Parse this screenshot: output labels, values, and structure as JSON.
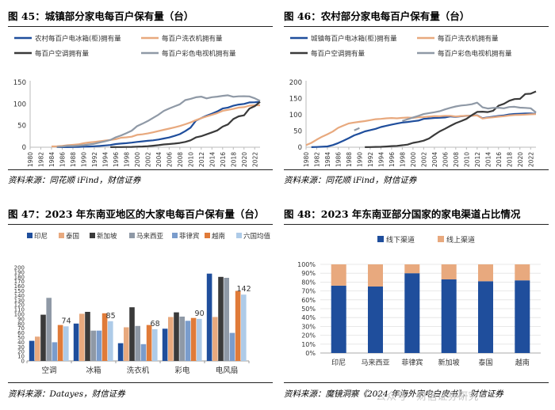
{
  "panels": [
    {
      "title": "图 45：城镇部分家电每百户保有量（台）",
      "source": "资料来源：同花顺 iFind，财信证券"
    },
    {
      "title": "图 46：农村部分家电每百户保有量（台）",
      "source": "资料来源：同花顺 iFind，财信证券"
    },
    {
      "title": "图 47：2023 年东南亚地区的大家电每百户保有量（台）",
      "source": "资料来源：Datayes，财信证券"
    },
    {
      "title": "图 48：2023 年东南亚部分国家的家电渠道占比情况",
      "source": "资料来源：魔镜洞察《2024 年海外家电白皮书》，财信证券"
    }
  ],
  "watermark": "公众号 · 财信证券研究",
  "chart_data": [
    {
      "type": "line",
      "title": "城镇部分家电每百户保有量（台）",
      "x": [
        1980,
        1981,
        1982,
        1983,
        1984,
        1985,
        1986,
        1987,
        1988,
        1989,
        1990,
        1991,
        1992,
        1993,
        1994,
        1995,
        1996,
        1997,
        1998,
        1999,
        2000,
        2001,
        2002,
        2003,
        2004,
        2005,
        2006,
        2007,
        2008,
        2009,
        2010,
        2011,
        2012,
        2013,
        2014,
        2015,
        2016,
        2017,
        2018,
        2019,
        2020,
        2021,
        2022,
        2023
      ],
      "x_ticks": [
        1980,
        1982,
        1984,
        1986,
        1988,
        1990,
        1992,
        1994,
        1996,
        1998,
        2000,
        2002,
        2004,
        2006,
        2008,
        2010,
        2012,
        2014,
        2016,
        2018,
        2020,
        2022
      ],
      "ylim": [
        0,
        150
      ],
      "y_ticks": [
        0,
        50,
        100,
        150
      ],
      "legend_cols": 2,
      "series": [
        {
          "name": "农村每百户电冰箱(柜)拥有量",
          "color": "#1f4e9c",
          "values": [
            null,
            null,
            null,
            null,
            null,
            0.1,
            0.1,
            0.2,
            0.3,
            0.5,
            1.2,
            1.6,
            2.2,
            2.9,
            4.0,
            5.2,
            7.3,
            8.5,
            9.3,
            10.6,
            12.3,
            13.6,
            14.8,
            15.9,
            17.8,
            20.1,
            22.5,
            26.1,
            30.2,
            37.1,
            45.2,
            61.5,
            67.3,
            72.9,
            77.6,
            82.6,
            89.5,
            91.7,
            95.9,
            98.6,
            100.1,
            103.5,
            103.9,
            105
          ]
        },
        {
          "name": "每百户洗衣机拥有量",
          "color": "#e8a97e",
          "values": [
            null,
            null,
            null,
            null,
            1.9,
            2.0,
            3.0,
            4.5,
            5.5,
            6.5,
            9.1,
            11.0,
            12.2,
            13.8,
            15.3,
            16.9,
            18.5,
            21.9,
            22.8,
            24.3,
            28.6,
            29.9,
            31.8,
            34.3,
            37.3,
            40.2,
            43.0,
            45.9,
            49.1,
            53.1,
            57.3,
            62.6,
            67.2,
            71.2,
            74.8,
            78.8,
            84.0,
            86.3,
            88.5,
            91.6,
            92.6,
            96.1,
            96.9,
            97
          ]
        },
        {
          "name": "每百户空调拥有量",
          "color": "#3a3a3a",
          "values": [
            null,
            null,
            null,
            null,
            null,
            null,
            null,
            null,
            null,
            null,
            null,
            null,
            null,
            null,
            null,
            0.2,
            0.3,
            0.4,
            0.6,
            0.7,
            1.3,
            1.7,
            2.3,
            3.4,
            4.7,
            6.4,
            7.3,
            8.5,
            9.8,
            12.2,
            16.0,
            22.6,
            25.4,
            29.8,
            34.2,
            38.8,
            47.6,
            52.6,
            65.2,
            71.3,
            73.8,
            89.0,
            95.0,
            105
          ]
        },
        {
          "name": "每百户彩色电视机拥有量",
          "color": "#8f99a6",
          "values": [
            null,
            null,
            null,
            null,
            null,
            0.8,
            1.5,
            3.0,
            2.8,
            3.6,
            4.7,
            6.4,
            8.1,
            10.9,
            13.5,
            16.9,
            22.9,
            27.3,
            32.6,
            38.2,
            48.7,
            54.4,
            60.5,
            67.8,
            75.1,
            84.0,
            89.4,
            94.4,
            99.2,
            108.9,
            111.8,
            115.5,
            116.9,
            112.9,
            115.6,
            116.9,
            118.8,
            120.0,
            116.6,
            117.6,
            117.8,
            117.5,
            113.0,
            107
          ]
        }
      ]
    },
    {
      "type": "line",
      "title": "农村部分家电每百户保有量（台）",
      "x": [
        1980,
        1981,
        1982,
        1983,
        1984,
        1985,
        1986,
        1987,
        1988,
        1989,
        1990,
        1991,
        1992,
        1993,
        1994,
        1995,
        1996,
        1997,
        1998,
        1999,
        2000,
        2001,
        2002,
        2003,
        2004,
        2005,
        2006,
        2007,
        2008,
        2009,
        2010,
        2011,
        2012,
        2013,
        2014,
        2015,
        2016,
        2017,
        2018,
        2019,
        2020,
        2021,
        2022,
        2023
      ],
      "x_ticks": [
        1980,
        1982,
        1984,
        1986,
        1988,
        1990,
        1992,
        1994,
        1996,
        1998,
        2000,
        2002,
        2004,
        2006,
        2008,
        2010,
        2012,
        2014,
        2016,
        2018,
        2020,
        2022
      ],
      "ylim": [
        0,
        200
      ],
      "y_ticks": [
        0,
        50,
        100,
        150,
        200
      ],
      "legend_cols": 2,
      "series": [
        {
          "name": "城镇每百户电冰箱(柜)拥有量",
          "color": "#1f4e9c",
          "values": [
            null,
            0.2,
            0.7,
            1.5,
            2.5,
            6.6,
            12.7,
            19.9,
            28.1,
            36.5,
            42.3,
            48.7,
            52.6,
            56.7,
            62.1,
            66.2,
            69.7,
            72.9,
            76.1,
            77.7,
            80.1,
            81.9,
            87.4,
            88.7,
            90.2,
            90.7,
            91.8,
            95.0,
            93.6,
            95.4,
            96.6,
            97.2,
            98.5,
            89.2,
            91.7,
            94.0,
            96.4,
            98.0,
            100.9,
            102.5,
            103.1,
            104.2,
            103.8,
            103
          ]
        },
        {
          "name": "每百户洗衣机拥有量",
          "color": "#e8a97e",
          "values": [
            6.3,
            13.4,
            23.3,
            32.5,
            40.1,
            48.3,
            59.7,
            66.8,
            73.4,
            76.2,
            78.4,
            80.6,
            83.4,
            86.4,
            87.3,
            88.97,
            90.06,
            89.1,
            90.6,
            91.4,
            90.5,
            92.2,
            92.9,
            94.4,
            95.9,
            95.5,
            96.8,
            96.8,
            94.7,
            96.0,
            96.9,
            97.1,
            98.0,
            88.4,
            90.7,
            92.3,
            94.2,
            95.7,
            97.7,
            99.2,
            99.7,
            100.5,
            101.5,
            102
          ]
        },
        {
          "name": "每百户空调拥有量",
          "color": "#3a3a3a",
          "values": [
            null,
            null,
            null,
            null,
            null,
            null,
            null,
            null,
            null,
            null,
            null,
            0.3,
            0.5,
            0.9,
            1.2,
            2.2,
            3.3,
            4.2,
            6.0,
            8.1,
            13.5,
            16.3,
            20.2,
            26.9,
            38.3,
            48.7,
            56.8,
            65.8,
            74.2,
            80.5,
            87.3,
            98.9,
            108.8,
            109.6,
            108.2,
            112.5,
            128.0,
            133.7,
            143.2,
            148.3,
            149.1,
            164.0,
            165.0,
            172
          ]
        },
        {
          "name": "每百户彩色电视机拥有量",
          "color": "#8f99a6",
          "values": [
            null,
            null,
            null,
            null,
            null,
            null,
            null,
            null,
            null,
            52.0,
            59.0,
            null,
            null,
            null,
            null,
            null,
            null,
            null,
            81.0,
            86.0,
            91.7,
            96.7,
            102.1,
            105.0,
            107.9,
            111.0,
            116.7,
            121.4,
            125.7,
            128.6,
            130.0,
            132.5,
            137.4,
            123.0,
            119.3,
            121.3,
            121.8,
            120.0,
            124.0,
            124.6,
            122.0,
            121.3,
            120.0,
            107
          ]
        }
      ]
    },
    {
      "type": "bar",
      "title": "2023 年东南亚地区的大家电每百户保有量（台）",
      "categories": [
        "空调",
        "冰箱",
        "洗衣机",
        "彩电",
        "电风扇"
      ],
      "ylim": [
        0,
        200
      ],
      "y_ticks": [
        0,
        10,
        20,
        30,
        40,
        50,
        60,
        70,
        80,
        90,
        100,
        110,
        120,
        130,
        140,
        150,
        160,
        170,
        180,
        190,
        200
      ],
      "y_tick_labels_shown": [
        0,
        20,
        40,
        60,
        80,
        100,
        120,
        140,
        160,
        180,
        200
      ],
      "series": [
        {
          "name": "印尼",
          "color": "#1f4e9c",
          "values": [
            43,
            80,
            38,
            69,
            187
          ]
        },
        {
          "name": "泰国",
          "color": "#e8a97e",
          "values": [
            52,
            101,
            72,
            94,
            94
          ]
        },
        {
          "name": "新加坡",
          "color": "#3a3a3a",
          "values": [
            99,
            105,
            115,
            104,
            180
          ]
        },
        {
          "name": "马来西亚",
          "color": "#8f99a6",
          "values": [
            135,
            65,
            75,
            95,
            178
          ]
        },
        {
          "name": "菲律宾",
          "color": "#7a9ccc",
          "values": [
            40,
            65,
            36,
            86,
            60
          ]
        },
        {
          "name": "越南",
          "color": "#e07b39",
          "values": [
            77,
            102,
            77,
            92,
            150
          ]
        },
        {
          "name": "六国均值",
          "color": "#aecbe8",
          "values": [
            74,
            85,
            68,
            90,
            142
          ]
        }
      ],
      "data_labels": {
        "series": "六国均值",
        "values": [
          74,
          85,
          68,
          90,
          142
        ]
      }
    },
    {
      "type": "bar",
      "stacked": true,
      "title": "2023 年东南亚部分国家的家电渠道占比情况",
      "categories": [
        "印尼",
        "马来西亚",
        "菲律宾",
        "新加坡",
        "泰国",
        "越南"
      ],
      "ylim": [
        0,
        100
      ],
      "y_ticks": [
        0,
        10,
        20,
        30,
        40,
        50,
        60,
        70,
        80,
        90,
        100
      ],
      "y_tick_labels": [
        "0%",
        "10%",
        "20%",
        "30%",
        "40%",
        "50%",
        "60%",
        "70%",
        "80%",
        "90%",
        "100%"
      ],
      "series": [
        {
          "name": "线下渠道",
          "color": "#1f4e9c",
          "values": [
            76,
            75,
            90,
            83,
            81,
            82
          ]
        },
        {
          "name": "线上渠道",
          "color": "#e8a97e",
          "values": [
            24,
            25,
            10,
            17,
            19,
            18
          ]
        }
      ]
    }
  ]
}
